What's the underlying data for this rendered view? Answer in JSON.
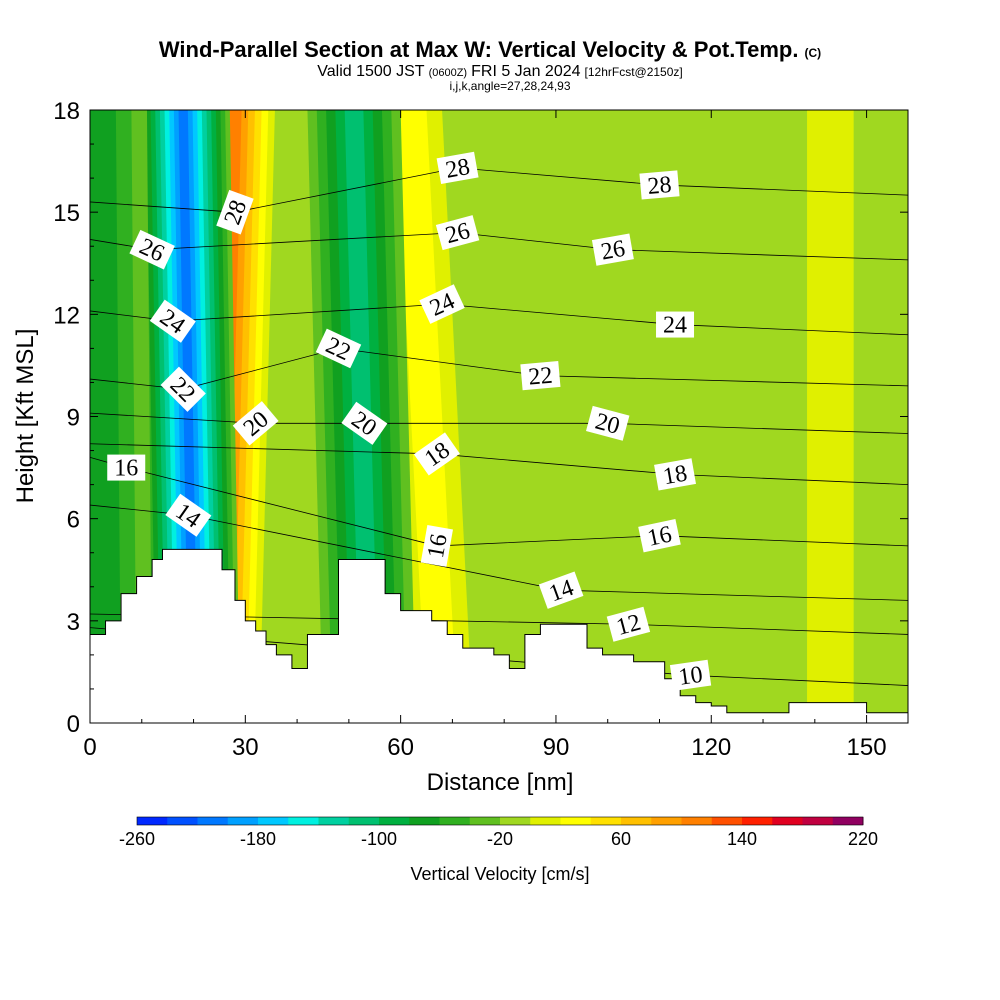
{
  "header": {
    "title": "Wind-Parallel Section at Max W: Vertical Velocity & Pot.Temp.",
    "copyright": "(C)",
    "valid_prefix": "Valid 1500 JST",
    "valid_utc": "(0600Z)",
    "valid_date": "FRI 5 Jan 2024",
    "forecast": "[12hrFcst@2150z]",
    "indices": "i,j,k,angle=27,28,24,93"
  },
  "chart_data": {
    "type": "heatmap",
    "xlabel": "Distance [nm]",
    "ylabel": "Height [Kft MSL]",
    "xlim": [
      0,
      158
    ],
    "ylim": [
      0,
      18
    ],
    "x_ticks": [
      0,
      30,
      60,
      90,
      120,
      150
    ],
    "y_ticks": [
      0,
      3,
      6,
      9,
      12,
      15,
      18
    ],
    "colorbar": {
      "label": "Vertical Velocity [cm/s]",
      "min": -260,
      "max": 220,
      "step": 20,
      "tick_values": [
        -260,
        -180,
        -100,
        -20,
        60,
        140,
        220
      ],
      "colors": [
        "#0000ff",
        "#0028ff",
        "#0050ff",
        "#0078ff",
        "#00a0ff",
        "#00c8ff",
        "#00f0e0",
        "#00d0a0",
        "#00c070",
        "#00b040",
        "#10a020",
        "#30b020",
        "#60c020",
        "#a0d820",
        "#e0f000",
        "#ffff00",
        "#ffe000",
        "#ffc000",
        "#ffa000",
        "#ff8000",
        "#ff5000",
        "#ff2000",
        "#e00020",
        "#c00040",
        "#900060",
        "#600080"
      ]
    },
    "updrafts": [
      {
        "x_bottom": 25,
        "x_top": 28,
        "peak": 140
      },
      {
        "x_bottom": 68,
        "x_top": 62,
        "peak": 60
      },
      {
        "x_bottom": 143,
        "x_top": 143,
        "peak": 40
      }
    ],
    "downdrafts": [
      {
        "x_bottom": 20,
        "x_top": 18,
        "peak": -200
      },
      {
        "x_bottom": 54,
        "x_top": 51,
        "peak": -100
      },
      {
        "x_bottom": 3,
        "x_top": 2,
        "peak": -60
      }
    ],
    "terrain": {
      "x": [
        0,
        3,
        6,
        9,
        12,
        14,
        17,
        20,
        23,
        25.5,
        28,
        30,
        32,
        34,
        36,
        39,
        42,
        45,
        48,
        51,
        54,
        57,
        60,
        63,
        66,
        69,
        72,
        75,
        78,
        81,
        84,
        87,
        90,
        93,
        96,
        99,
        102,
        105,
        108,
        111,
        114,
        117,
        120,
        123,
        126,
        129,
        132,
        135,
        138,
        141,
        144,
        147,
        150,
        153,
        156,
        158
      ],
      "height_kft": [
        2.6,
        3.0,
        3.8,
        4.3,
        4.8,
        5.1,
        5.1,
        5.1,
        5.1,
        4.5,
        3.6,
        3.0,
        2.7,
        2.3,
        2.0,
        1.6,
        2.6,
        2.6,
        4.8,
        4.8,
        4.8,
        3.8,
        3.3,
        3.3,
        3.0,
        2.6,
        2.2,
        2.2,
        2.0,
        1.6,
        2.6,
        2.9,
        2.9,
        2.9,
        2.2,
        2.0,
        2.0,
        1.8,
        1.8,
        1.3,
        0.8,
        0.6,
        0.5,
        0.3,
        0.3,
        0.3,
        0.3,
        0.6,
        0.6,
        0.6,
        0.6,
        0.6,
        0.3,
        0.3,
        0.3,
        0.3
      ]
    },
    "theta_contour_labels": [
      {
        "value": 10,
        "text": "10",
        "x": 116,
        "y": 1.4,
        "angle": -8
      },
      {
        "value": 12,
        "text": "12",
        "x": 104,
        "y": 2.9,
        "angle": -15
      },
      {
        "value": 14,
        "text": "14",
        "x": 91,
        "y": 3.9,
        "angle": -20
      },
      {
        "value": 14,
        "text": "14",
        "x": 19,
        "y": 6.1,
        "angle": 35
      },
      {
        "value": 16,
        "text": "16",
        "x": 7,
        "y": 7.5,
        "angle": 0
      },
      {
        "value": 16,
        "text": "16",
        "x": 67,
        "y": 5.2,
        "angle": -80
      },
      {
        "value": 16,
        "text": "16",
        "x": 110,
        "y": 5.5,
        "angle": -12
      },
      {
        "value": 18,
        "text": "18",
        "x": 67,
        "y": 7.9,
        "angle": -35
      },
      {
        "value": 18,
        "text": "18",
        "x": 113,
        "y": 7.3,
        "angle": -10
      },
      {
        "value": 20,
        "text": "20",
        "x": 32,
        "y": 8.8,
        "angle": -40
      },
      {
        "value": 20,
        "text": "20",
        "x": 53,
        "y": 8.8,
        "angle": 35
      },
      {
        "value": 20,
        "text": "20",
        "x": 100,
        "y": 8.8,
        "angle": 15
      },
      {
        "value": 22,
        "text": "22",
        "x": 18,
        "y": 9.8,
        "angle": 45
      },
      {
        "value": 22,
        "text": "22",
        "x": 48,
        "y": 11.0,
        "angle": 25
      },
      {
        "value": 22,
        "text": "22",
        "x": 87,
        "y": 10.2,
        "angle": -5
      },
      {
        "value": 24,
        "text": "24",
        "x": 16,
        "y": 11.8,
        "angle": 35
      },
      {
        "value": 24,
        "text": "24",
        "x": 68,
        "y": 12.3,
        "angle": -25
      },
      {
        "value": 24,
        "text": "24",
        "x": 113,
        "y": 11.7,
        "angle": 0
      },
      {
        "value": 26,
        "text": "26",
        "x": 12,
        "y": 13.9,
        "angle": 25
      },
      {
        "value": 26,
        "text": "26",
        "x": 71,
        "y": 14.4,
        "angle": -15
      },
      {
        "value": 26,
        "text": "26",
        "x": 101,
        "y": 13.9,
        "angle": -10
      },
      {
        "value": 28,
        "text": "28",
        "x": 28,
        "y": 15.0,
        "angle": -70
      },
      {
        "value": 28,
        "text": "28",
        "x": 71,
        "y": 16.3,
        "angle": -10
      },
      {
        "value": 28,
        "text": "28",
        "x": 110,
        "y": 15.8,
        "angle": -5
      }
    ]
  }
}
